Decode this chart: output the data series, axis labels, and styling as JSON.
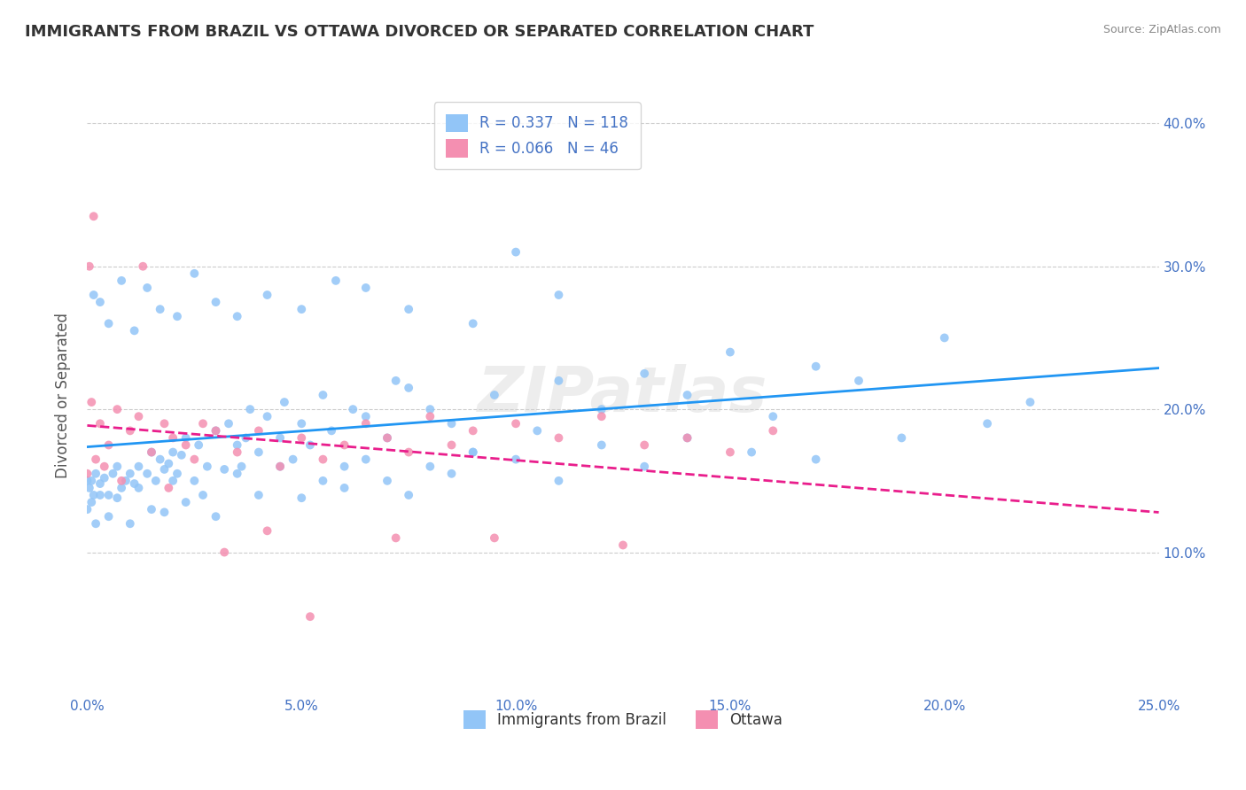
{
  "title": "IMMIGRANTS FROM BRAZIL VS OTTAWA DIVORCED OR SEPARATED CORRELATION CHART",
  "source_text": "Source: ZipAtlas.com",
  "xlabel": "",
  "ylabel": "Divorced or Separated",
  "xlabel_bottom": "",
  "x_tick_labels": [
    "0.0%",
    "5.0%",
    "10.0%",
    "15.0%",
    "20.0%",
    "25.0%"
  ],
  "x_tick_vals": [
    0.0,
    5.0,
    10.0,
    15.0,
    20.0,
    25.0
  ],
  "y_tick_labels": [
    "10.0%",
    "20.0%",
    "30.0%",
    "40.0%"
  ],
  "y_tick_vals": [
    10.0,
    20.0,
    30.0,
    40.0
  ],
  "xlim": [
    0.0,
    25.0
  ],
  "ylim": [
    0.0,
    42.0
  ],
  "series": [
    {
      "name": "Immigrants from Brazil",
      "R": 0.337,
      "N": 118,
      "color": "#92C5F7",
      "line_color": "#2196F3",
      "line_style": "solid",
      "x": [
        0.0,
        0.05,
        0.1,
        0.15,
        0.2,
        0.3,
        0.4,
        0.5,
        0.6,
        0.7,
        0.8,
        0.9,
        1.0,
        1.1,
        1.2,
        1.4,
        1.5,
        1.6,
        1.7,
        1.8,
        1.9,
        2.0,
        2.1,
        2.2,
        2.3,
        2.5,
        2.6,
        2.8,
        3.0,
        3.2,
        3.3,
        3.5,
        3.6,
        3.7,
        3.8,
        4.0,
        4.2,
        4.5,
        4.6,
        4.8,
        5.0,
        5.2,
        5.5,
        5.7,
        6.0,
        6.2,
        6.5,
        7.0,
        7.2,
        7.5,
        8.0,
        8.5,
        9.0,
        9.5,
        10.0,
        10.5,
        11.0,
        12.0,
        13.0,
        14.0,
        15.0,
        16.0,
        17.0,
        18.0,
        20.0,
        22.0,
        0.0,
        0.1,
        0.2,
        0.3,
        0.5,
        0.7,
        1.0,
        1.2,
        1.5,
        1.8,
        2.0,
        2.3,
        2.7,
        3.0,
        3.5,
        4.0,
        4.5,
        5.0,
        5.5,
        6.0,
        6.5,
        7.0,
        7.5,
        8.0,
        8.5,
        9.0,
        10.0,
        11.0,
        12.0,
        13.0,
        14.0,
        15.5,
        17.0,
        19.0,
        21.0,
        0.15,
        0.3,
        0.5,
        0.8,
        1.1,
        1.4,
        1.7,
        2.1,
        2.5,
        3.0,
        3.5,
        4.2,
        5.0,
        5.8,
        6.5,
        7.5,
        9.0,
        11.0
      ],
      "y": [
        15.0,
        14.5,
        15.0,
        14.0,
        15.5,
        14.8,
        15.2,
        14.0,
        15.5,
        16.0,
        14.5,
        15.0,
        15.5,
        14.8,
        16.0,
        15.5,
        17.0,
        15.0,
        16.5,
        15.8,
        16.2,
        17.0,
        15.5,
        16.8,
        18.0,
        15.0,
        17.5,
        16.0,
        18.5,
        15.8,
        19.0,
        17.5,
        16.0,
        18.0,
        20.0,
        17.0,
        19.5,
        18.0,
        20.5,
        16.5,
        19.0,
        17.5,
        21.0,
        18.5,
        16.0,
        20.0,
        19.5,
        18.0,
        22.0,
        21.5,
        20.0,
        19.0,
        17.0,
        21.0,
        31.0,
        18.5,
        22.0,
        20.0,
        22.5,
        21.0,
        24.0,
        19.5,
        23.0,
        22.0,
        25.0,
        20.5,
        13.0,
        13.5,
        12.0,
        14.0,
        12.5,
        13.8,
        12.0,
        14.5,
        13.0,
        12.8,
        15.0,
        13.5,
        14.0,
        12.5,
        15.5,
        14.0,
        16.0,
        13.8,
        15.0,
        14.5,
        16.5,
        15.0,
        14.0,
        16.0,
        15.5,
        17.0,
        16.5,
        15.0,
        17.5,
        16.0,
        18.0,
        17.0,
        16.5,
        18.0,
        19.0,
        28.0,
        27.5,
        26.0,
        29.0,
        25.5,
        28.5,
        27.0,
        26.5,
        29.5,
        27.5,
        26.5,
        28.0,
        27.0,
        29.0,
        28.5,
        27.0,
        26.0,
        28.0
      ]
    },
    {
      "name": "Ottawa",
      "R": 0.066,
      "N": 46,
      "color": "#F48FB1",
      "line_color": "#E91E8C",
      "line_style": "dashed",
      "x": [
        0.0,
        0.1,
        0.2,
        0.3,
        0.5,
        0.7,
        1.0,
        1.2,
        1.5,
        1.8,
        2.0,
        2.3,
        2.7,
        3.0,
        3.5,
        4.0,
        4.5,
        5.0,
        5.5,
        6.0,
        6.5,
        7.0,
        7.5,
        8.0,
        8.5,
        9.0,
        10.0,
        11.0,
        12.0,
        13.0,
        14.0,
        15.0,
        16.0,
        0.05,
        0.15,
        0.4,
        0.8,
        1.3,
        1.9,
        2.5,
        3.2,
        4.2,
        5.2,
        7.2,
        9.5,
        12.5
      ],
      "y": [
        15.5,
        20.5,
        16.5,
        19.0,
        17.5,
        20.0,
        18.5,
        19.5,
        17.0,
        19.0,
        18.0,
        17.5,
        19.0,
        18.5,
        17.0,
        18.5,
        16.0,
        18.0,
        16.5,
        17.5,
        19.0,
        18.0,
        17.0,
        19.5,
        17.5,
        18.5,
        19.0,
        18.0,
        19.5,
        17.5,
        18.0,
        17.0,
        18.5,
        30.0,
        33.5,
        16.0,
        15.0,
        30.0,
        14.5,
        16.5,
        10.0,
        11.5,
        5.5,
        11.0,
        11.0,
        10.5
      ]
    }
  ],
  "watermark": "ZIPatlas",
  "background_color": "#ffffff",
  "grid_color": "#cccccc",
  "title_fontsize": 13,
  "axis_label_color": "#4472c4",
  "tick_label_color": "#4472c4",
  "legend_R_color": "#4472c4",
  "legend_N_color": "#4472c4"
}
